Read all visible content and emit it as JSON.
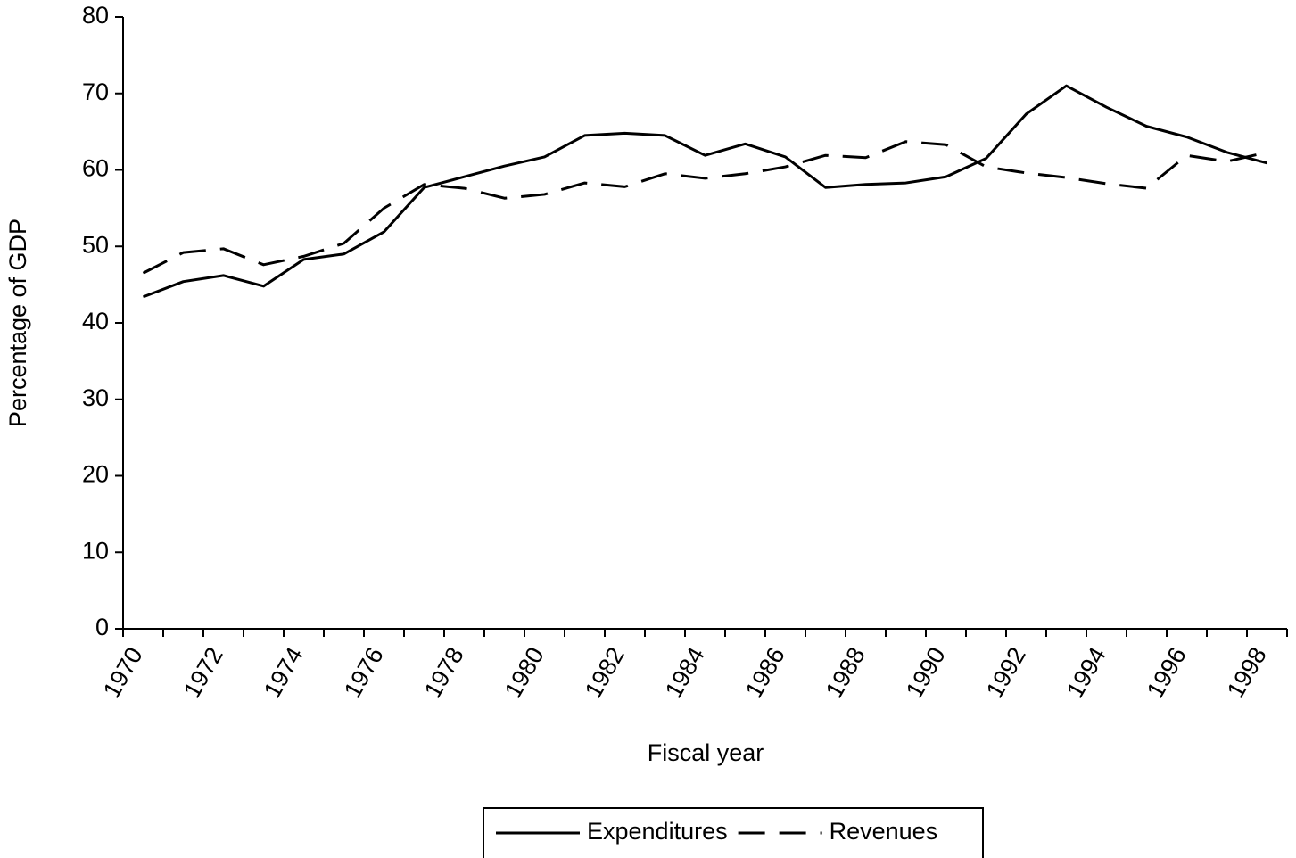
{
  "chart_data": {
    "type": "line",
    "xlabel": "Fiscal year",
    "ylabel": "Percentage of GDP",
    "categories": [
      "1970",
      null,
      "1972",
      null,
      "1974",
      null,
      "1976",
      null,
      "1978",
      null,
      "1980",
      null,
      "1982",
      null,
      "1984",
      null,
      "1986",
      null,
      "1988",
      null,
      "1990",
      null,
      "1992",
      null,
      "1994",
      null,
      "1996",
      null,
      "1998"
    ],
    "series": [
      {
        "name": "Expenditures",
        "color": "#000000",
        "dash": "solid",
        "values": [
          43.4,
          45.4,
          46.2,
          44.8,
          48.3,
          49.0,
          51.9,
          57.7,
          59.1,
          60.5,
          61.7,
          64.5,
          64.8,
          64.5,
          61.9,
          63.4,
          61.7,
          57.7,
          58.1,
          58.3,
          59.1,
          61.5,
          67.3,
          71.0,
          68.2,
          65.7,
          64.3,
          62.3,
          60.9
        ]
      },
      {
        "name": "Revenues",
        "color": "#000000",
        "dash": "dashed",
        "values": [
          46.5,
          49.2,
          49.7,
          47.6,
          48.7,
          50.4,
          55.0,
          58.1,
          57.6,
          56.3,
          56.8,
          58.3,
          57.8,
          59.5,
          58.9,
          59.5,
          60.4,
          61.9,
          61.6,
          63.7,
          63.3,
          60.4,
          59.6,
          59.0,
          58.2,
          57.6,
          61.9,
          61.1,
          62.3
        ]
      }
    ],
    "ylim": [
      0,
      80
    ],
    "yticks": [
      0,
      10,
      20,
      30,
      40,
      50,
      60,
      70,
      80
    ],
    "grid": false,
    "legend": "bottom"
  }
}
